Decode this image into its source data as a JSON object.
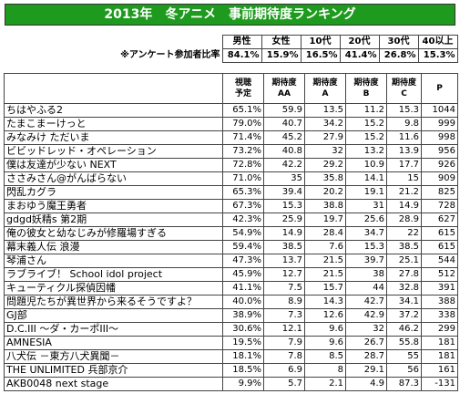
{
  "title": "2013年　冬アニメ　事前期待度ランキング",
  "survey": {
    "headers": [
      "男性",
      "女性",
      "10代",
      "20代",
      "30代",
      "40以上"
    ],
    "label": "※アンケート参加者比率",
    "values": [
      "84.1%",
      "15.9%",
      "16.5%",
      "41.4%",
      "26.8%",
      "15.3%"
    ]
  },
  "table": {
    "headers": [
      "視聴\n予定",
      "期待度\nAA",
      "期待度\nA",
      "期待度\nB",
      "期待度\nC",
      "P"
    ],
    "rows": [
      [
        "ちはやふる2",
        "65.1%",
        "59.9",
        "13.5",
        "11.2",
        "15.3",
        "1044"
      ],
      [
        "たまこまーけっと",
        "79.0%",
        "40.7",
        "34.2",
        "15.2",
        "9.8",
        "999"
      ],
      [
        "みなみけ ただいま",
        "71.4%",
        "45.2",
        "27.9",
        "15.2",
        "11.6",
        "998"
      ],
      [
        "ビビッドレッド・オペレーション",
        "73.2%",
        "40.8",
        "32",
        "13.2",
        "13.9",
        "956"
      ],
      [
        "僕は友達が少ない NEXT",
        "72.8%",
        "42.2",
        "29.2",
        "10.9",
        "17.7",
        "926"
      ],
      [
        "ささみさん@がんばらない",
        "71.0%",
        "35",
        "35.8",
        "14.1",
        "15",
        "909"
      ],
      [
        "閃乱カグラ",
        "65.3%",
        "39.4",
        "20.2",
        "19.1",
        "21.2",
        "825"
      ],
      [
        "まおゆう魔王勇者",
        "67.3%",
        "15.3",
        "38.8",
        "31",
        "14.9",
        "728"
      ],
      [
        "gdgd妖精s 第2期",
        "42.3%",
        "25.9",
        "19.7",
        "25.6",
        "28.9",
        "627"
      ],
      [
        "俺の彼女と幼なじみが修羅場すぎる",
        "54.9%",
        "14.9",
        "28.4",
        "34.7",
        "22",
        "615"
      ],
      [
        "幕末義人伝 浪漫",
        "59.4%",
        "38.5",
        "7.6",
        "15.3",
        "38.5",
        "615"
      ],
      [
        "琴浦さん",
        "47.3%",
        "13.7",
        "21.5",
        "39.7",
        "25.1",
        "544"
      ],
      [
        "ラブライブ！ School idol project",
        "45.9%",
        "12.7",
        "21.5",
        "38",
        "27.8",
        "512"
      ],
      [
        "キューティクル探偵因幡",
        "41.1%",
        "7.5",
        "15.7",
        "44",
        "32.8",
        "391"
      ],
      [
        "問題児たちが異世界から来るそうですよ？",
        "40.0%",
        "8.9",
        "14.3",
        "42.7",
        "34.1",
        "388"
      ],
      [
        "GJ部",
        "38.9%",
        "7.3",
        "12.6",
        "42.9",
        "37.2",
        "338"
      ],
      [
        "D.C.III ～ダ・カーポIII～",
        "30.6%",
        "12.1",
        "9.6",
        "32",
        "46.2",
        "299"
      ],
      [
        "AMNESIA",
        "19.5%",
        "7.9",
        "9.6",
        "26.7",
        "55.8",
        "181"
      ],
      [
        "八犬伝 －東方八犬異聞－",
        "18.1%",
        "7.8",
        "8.5",
        "28.7",
        "55",
        "181"
      ],
      [
        "THE UNLIMITED 兵部京介",
        "18.5%",
        "6.9",
        "8",
        "29.1",
        "56",
        "161"
      ],
      [
        "AKB0048 next stage",
        "9.9%",
        "5.7",
        "2.1",
        "4.9",
        "87.3",
        "-131"
      ]
    ]
  }
}
